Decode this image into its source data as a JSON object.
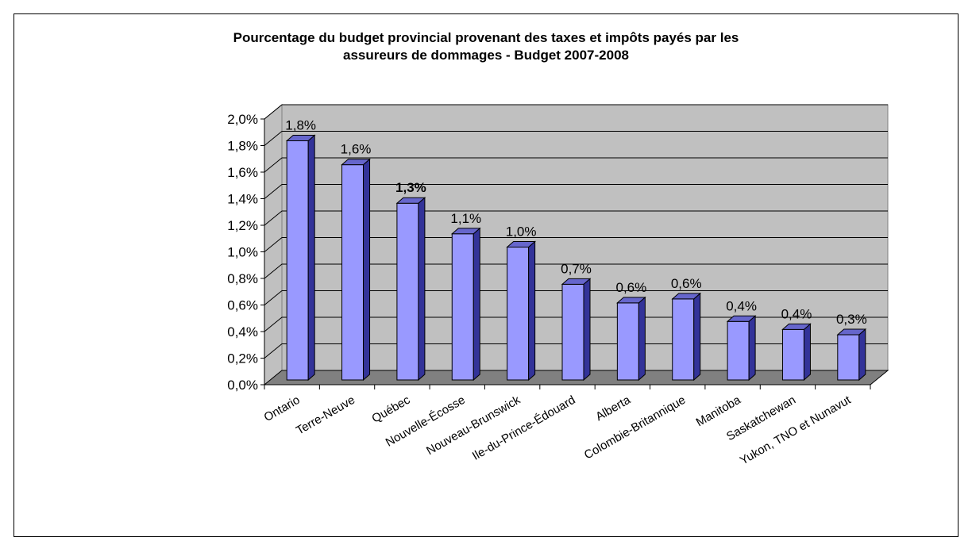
{
  "chart_data": {
    "type": "bar",
    "title_lines": [
      "Pourcentage du budget provincial provenant des taxes et impôts payés par les",
      "assureurs de dommages - Budget 2007-2008"
    ],
    "categories": [
      "Ontario",
      "Terre-Neuve",
      "Québec",
      "Nouvelle-Écosse",
      "Nouveau-Brunswick",
      "Ile-du-Prince-Édouard",
      "Alberta",
      "Colombie-Britannique",
      "Manitoba",
      "Saskatchewan",
      "Yukon, TNO et Nunavut"
    ],
    "values": [
      1.8,
      1.62,
      1.33,
      1.1,
      1.0,
      0.72,
      0.58,
      0.61,
      0.44,
      0.38,
      0.34
    ],
    "data_labels": [
      "1,8%",
      "1,6%",
      "1,3%",
      "1,1%",
      "1,0%",
      "0,7%",
      "0,6%",
      "0,6%",
      "0,4%",
      "0,4%",
      "0,3%"
    ],
    "bold_labels": [
      false,
      false,
      true,
      false,
      false,
      false,
      false,
      false,
      false,
      false,
      false
    ],
    "ylim": [
      0,
      2.0
    ],
    "yticks": [
      0,
      0.2,
      0.4,
      0.6,
      0.8,
      1.0,
      1.2,
      1.4,
      1.6,
      1.8,
      2.0
    ],
    "ytick_labels": [
      "0,0%",
      "0,2%",
      "0,4%",
      "0,6%",
      "0,8%",
      "1,0%",
      "1,2%",
      "1,4%",
      "1,6%",
      "1,8%",
      "2,0%"
    ],
    "xlabel": "",
    "ylabel": "",
    "grid": true,
    "legend": "none",
    "colors": {
      "bar": "#9999ff",
      "wall": "#c0c0c0",
      "floor": "#808080"
    }
  }
}
